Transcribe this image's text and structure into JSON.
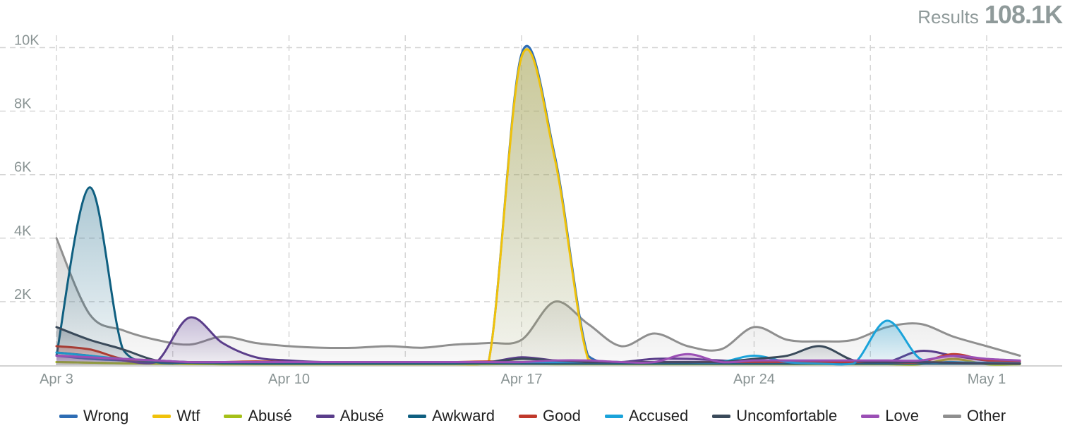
{
  "header": {
    "results_label": "Results",
    "results_value": "108.1K"
  },
  "chart_data": {
    "type": "area",
    "x_tick_labels": [
      "Apr 3",
      "Apr 10",
      "Apr 17",
      "Apr 24",
      "May 1"
    ],
    "x_tick_days": [
      0,
      7,
      14,
      21,
      28
    ],
    "y_tick_labels": [
      "2K",
      "4K",
      "6K",
      "8K",
      "10K"
    ],
    "y_ticks": [
      2000,
      4000,
      6000,
      8000,
      10000
    ],
    "ylim": [
      0,
      10500
    ],
    "grid": true,
    "legend_position": "bottom",
    "x_days": [
      0,
      1,
      2,
      3,
      4,
      5,
      6,
      7,
      8,
      9,
      10,
      11,
      12,
      13,
      14,
      15,
      16,
      17,
      18,
      19,
      20,
      21,
      22,
      23,
      24,
      25,
      26,
      27,
      28,
      29
    ],
    "series": [
      {
        "name": "Wrong",
        "color": "#2e6db4",
        "values": [
          300,
          200,
          150,
          100,
          80,
          60,
          50,
          50,
          50,
          50,
          50,
          50,
          50,
          60,
          9800,
          6600,
          300,
          100,
          80,
          60,
          60,
          60,
          60,
          60,
          60,
          60,
          60,
          60,
          60,
          60
        ]
      },
      {
        "name": "Wtf",
        "color": "#f0c20a",
        "values": [
          100,
          80,
          60,
          50,
          40,
          30,
          30,
          30,
          30,
          30,
          30,
          30,
          30,
          50,
          9700,
          6500,
          200,
          80,
          60,
          50,
          50,
          50,
          50,
          50,
          50,
          50,
          50,
          50,
          50,
          50
        ]
      },
      {
        "name": "Abusé",
        "color": "#a5c018",
        "values": [
          100,
          80,
          60,
          50,
          40,
          30,
          30,
          30,
          30,
          30,
          30,
          30,
          30,
          30,
          40,
          30,
          30,
          30,
          30,
          30,
          30,
          30,
          30,
          30,
          30,
          30,
          30,
          200,
          30,
          30
        ]
      },
      {
        "name": "Abusé",
        "color": "#5a3d8a",
        "values": [
          400,
          300,
          150,
          100,
          1500,
          700,
          250,
          150,
          100,
          100,
          100,
          100,
          100,
          100,
          250,
          150,
          100,
          100,
          200,
          200,
          150,
          100,
          100,
          100,
          100,
          100,
          450,
          300,
          150,
          120
        ]
      },
      {
        "name": "Awkward",
        "color": "#0f5f80",
        "values": [
          300,
          5600,
          500,
          100,
          80,
          60,
          50,
          50,
          50,
          50,
          50,
          50,
          50,
          60,
          50,
          50,
          50,
          50,
          50,
          50,
          50,
          50,
          50,
          50,
          50,
          50,
          50,
          50,
          50,
          50
        ]
      },
      {
        "name": "Good",
        "color": "#c0392b",
        "values": [
          600,
          500,
          200,
          150,
          100,
          100,
          120,
          100,
          100,
          100,
          100,
          100,
          100,
          120,
          100,
          100,
          100,
          100,
          100,
          100,
          100,
          100,
          100,
          100,
          100,
          100,
          100,
          350,
          150,
          100
        ]
      },
      {
        "name": "Accused",
        "color": "#1aa3da",
        "values": [
          400,
          300,
          200,
          150,
          100,
          100,
          100,
          100,
          100,
          100,
          100,
          100,
          100,
          100,
          100,
          100,
          100,
          100,
          100,
          100,
          100,
          300,
          100,
          50,
          50,
          1400,
          200,
          100,
          80,
          60
        ]
      },
      {
        "name": "Uncomfortable",
        "color": "#3a4a5a",
        "values": [
          1200,
          800,
          500,
          150,
          100,
          100,
          100,
          100,
          100,
          100,
          100,
          100,
          100,
          100,
          200,
          150,
          100,
          100,
          100,
          100,
          100,
          200,
          300,
          600,
          150,
          100,
          100,
          80,
          60,
          50
        ]
      },
      {
        "name": "Love",
        "color": "#9b4fb5",
        "values": [
          300,
          250,
          200,
          150,
          100,
          100,
          100,
          100,
          100,
          100,
          100,
          100,
          100,
          100,
          100,
          150,
          150,
          100,
          100,
          350,
          100,
          150,
          150,
          150,
          150,
          150,
          150,
          300,
          200,
          150
        ]
      },
      {
        "name": "Other",
        "color": "#8f8f8f",
        "values": [
          4000,
          1600,
          1100,
          800,
          650,
          900,
          700,
          600,
          550,
          550,
          600,
          550,
          650,
          700,
          800,
          2000,
          1300,
          600,
          1000,
          600,
          500,
          1200,
          800,
          750,
          800,
          1200,
          1300,
          900,
          600,
          300
        ]
      }
    ]
  }
}
